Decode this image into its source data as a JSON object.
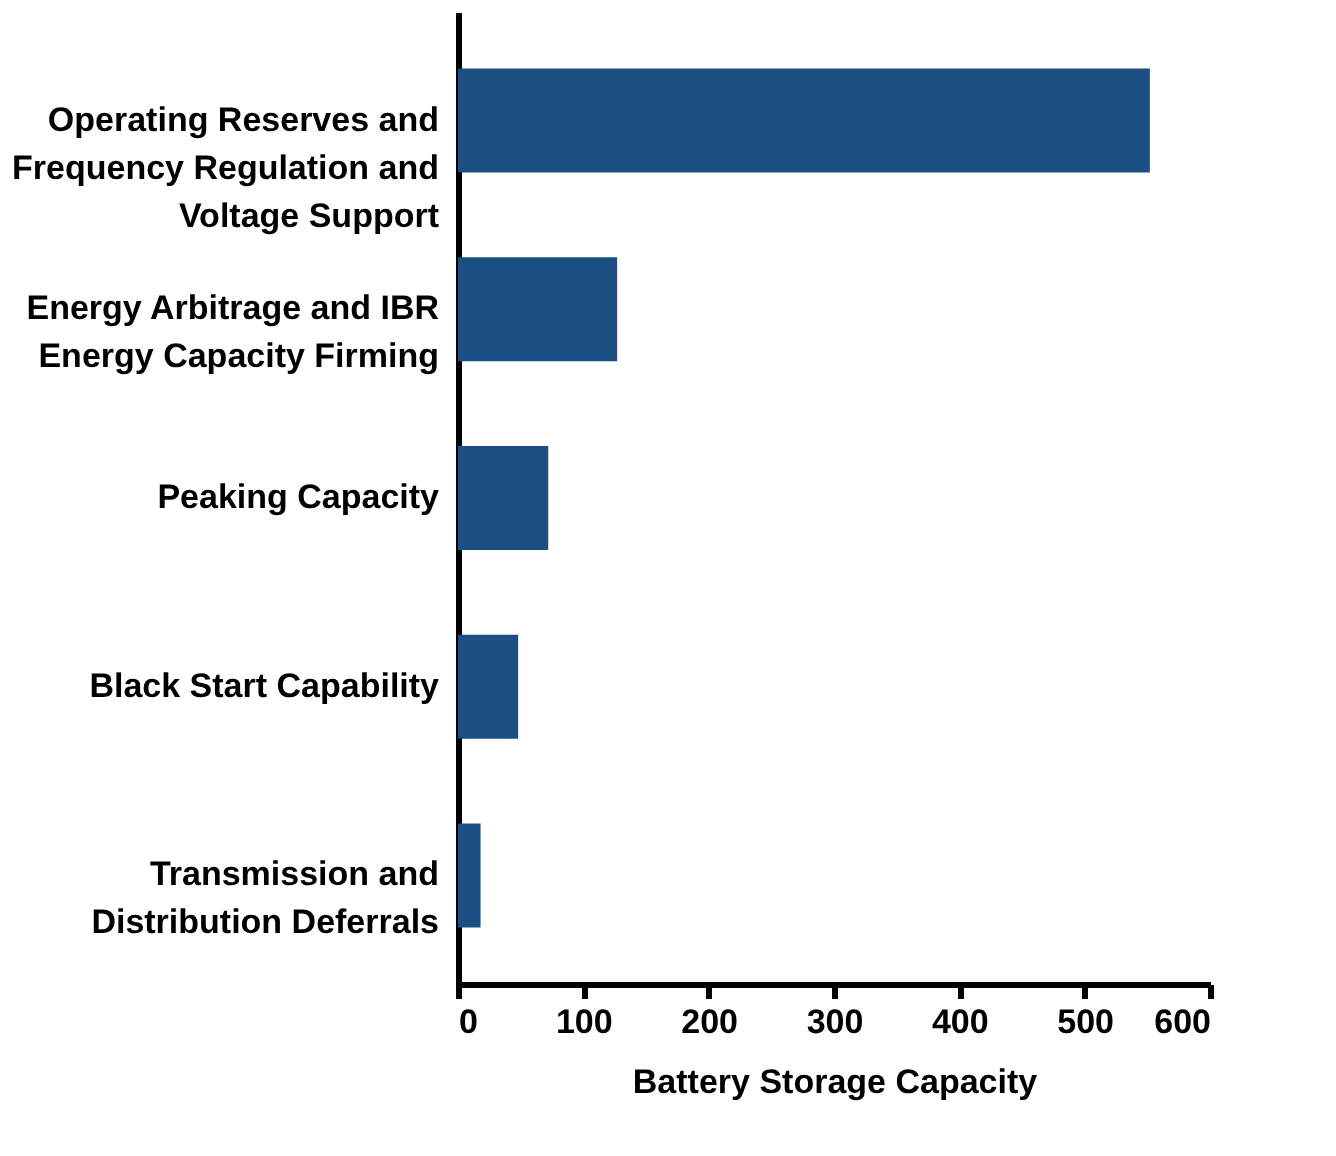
{
  "chart_data": {
    "type": "bar",
    "orientation": "horizontal",
    "xlabel": "Battery Storage Capacity",
    "categories": [
      "Operating Reserves and Frequency Regulation and Voltage Support",
      "Energy Arbitrage and IBR Energy Capacity Firming",
      "Peaking Capacity",
      "Black Start Capability",
      "Transmission and Distribution Deferrals"
    ],
    "values": [
      552,
      127,
      72,
      48,
      18
    ],
    "color": "#1b4e81",
    "xlim": [
      0,
      600
    ],
    "xticks": [
      0,
      100,
      200,
      300,
      400,
      500,
      600
    ],
    "grid": false
  }
}
